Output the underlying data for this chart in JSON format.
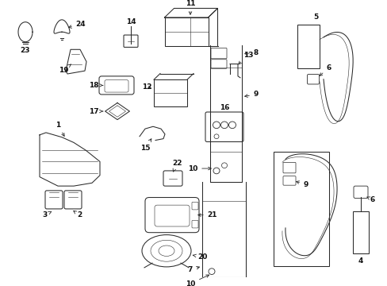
{
  "bg_color": "#ffffff",
  "line_color": "#2a2a2a",
  "label_color": "#111111",
  "figsize": [
    4.89,
    3.6
  ],
  "dpi": 100,
  "lw": 0.75,
  "fs": 6.5
}
